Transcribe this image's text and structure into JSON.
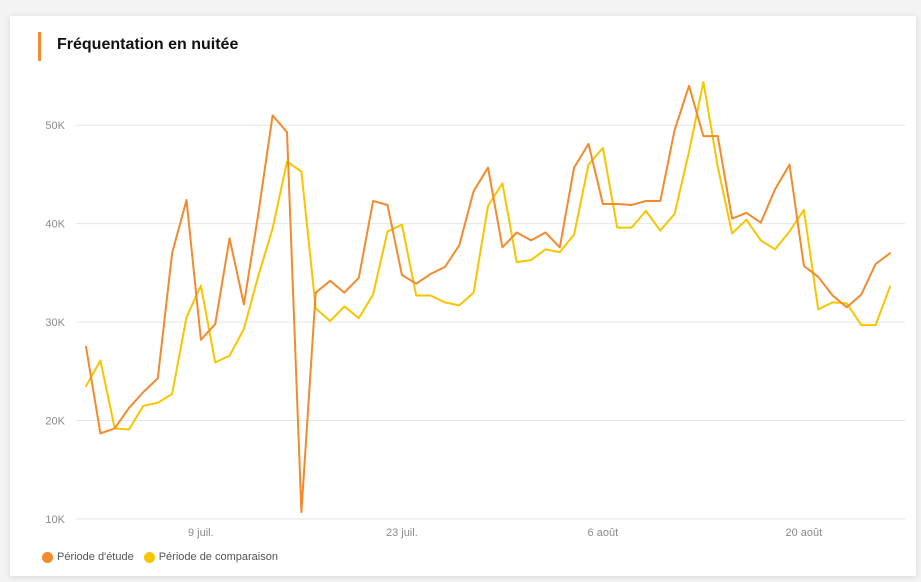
{
  "chart_data": {
    "type": "line",
    "title": "Fréquentation en nuitée",
    "xlabel": "",
    "ylabel": "",
    "ylim": [
      10000,
      55000
    ],
    "yticks": [
      10000,
      20000,
      30000,
      40000,
      50000
    ],
    "yticklabels": [
      "10K",
      "20K",
      "30K",
      "40K",
      "50K"
    ],
    "xticklabels": [
      "9 juil.",
      "23 juil.",
      "6 août",
      "20 août"
    ],
    "xtick_indices": [
      8,
      22,
      36,
      50
    ],
    "grid": true,
    "legend_position": "bottom-left",
    "series": [
      {
        "name": "Période d'étude",
        "color": "#f28a2e",
        "values": [
          27500,
          18700,
          19200,
          21300,
          22900,
          24300,
          37000,
          42400,
          28200,
          29800,
          38500,
          31800,
          41000,
          51000,
          49300,
          10700,
          33000,
          34200,
          33000,
          34500,
          42300,
          41900,
          34800,
          33900,
          34900,
          35600,
          37800,
          43300,
          45700,
          37600,
          39100,
          38300,
          39100,
          37600,
          45700,
          48100,
          42000,
          42000,
          41900,
          42300,
          42300,
          49500,
          54000,
          48900,
          48900,
          40500,
          41100,
          40100,
          43500,
          46000,
          35700,
          34600,
          32700,
          31500,
          32800,
          35900,
          37000
        ]
      },
      {
        "name": "Période de comparaison",
        "color": "#f7c600",
        "values": [
          23500,
          26100,
          19200,
          19100,
          21500,
          21800,
          22700,
          30500,
          33700,
          25900,
          26600,
          29300,
          34700,
          39500,
          46300,
          45300,
          31400,
          30100,
          31600,
          30400,
          32800,
          39200,
          39900,
          32700,
          32700,
          32000,
          31700,
          33000,
          41800,
          44100,
          36100,
          36300,
          37400,
          37100,
          38900,
          46000,
          47700,
          39600,
          39600,
          41300,
          39300,
          41000,
          47300,
          54400,
          45800,
          39000,
          40400,
          38300,
          37400,
          39200,
          41400,
          31300,
          32000,
          31900,
          29700,
          29700,
          33600
        ]
      }
    ]
  }
}
